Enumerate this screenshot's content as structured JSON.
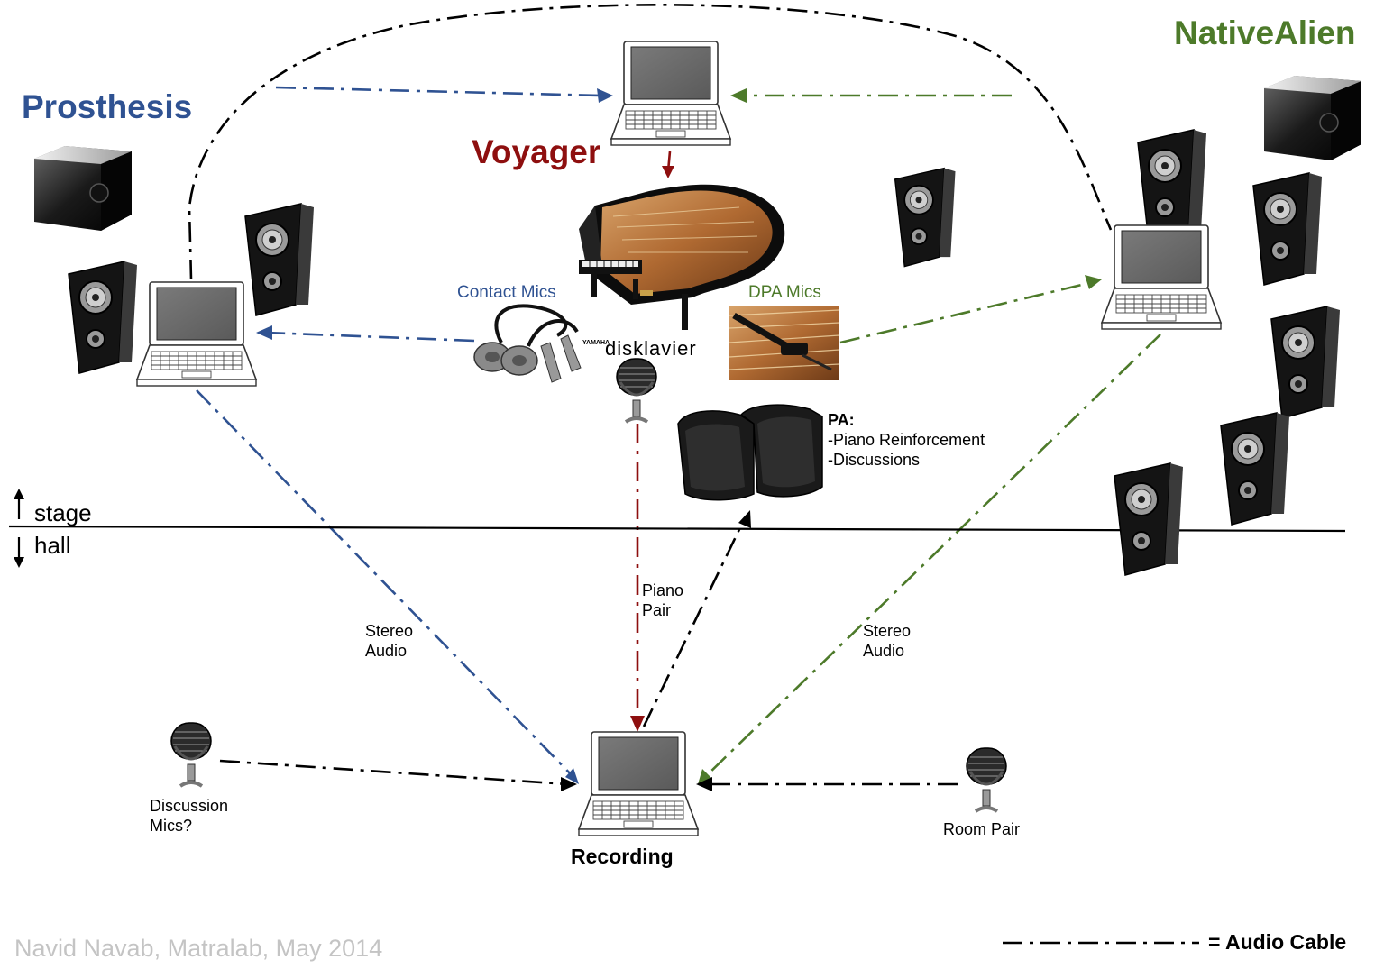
{
  "colors": {
    "prosthesis": "#2f5292",
    "voyager": "#8e0f0f",
    "nativealien": "#4d7a2a",
    "cable": "#000000",
    "credit": "#c4c4c4"
  },
  "titles": {
    "prosthesis": "Prosthesis",
    "voyager": "Voyager",
    "nativealien": "NativeAlien"
  },
  "labels": {
    "contact_mics": "Contact Mics",
    "dpa_mics": "DPA Mics",
    "disklavier": "disklavier",
    "yamaha": "YAMAHA",
    "pa_heading": "PA:",
    "pa_line1": "-Piano Reinforcement",
    "pa_line2": "-Discussions",
    "stage": "stage",
    "hall": "hall",
    "stereo_left_1": "Stereo",
    "stereo_left_2": "Audio",
    "stereo_right_1": "Stereo",
    "stereo_right_2": "Audio",
    "piano_1": "Piano",
    "piano_2": "Pair",
    "discussion_1": "Discussion",
    "discussion_2": "Mics?",
    "room_pair": "Room Pair",
    "recording": "Recording",
    "credit": "Navid Navab, Matralab, May 2014",
    "legend": "= Audio Cable"
  },
  "icons": {
    "laptop": "laptop-icon",
    "speaker": "speaker-icon",
    "subwoofer": "subwoofer-icon",
    "microphone": "microphone-icon",
    "piano": "grand-piano-icon",
    "contact_mic": "contact-mic-icon",
    "dpa_mic": "dpa-mic-photo",
    "pa_monitor": "pa-monitor-icon"
  }
}
